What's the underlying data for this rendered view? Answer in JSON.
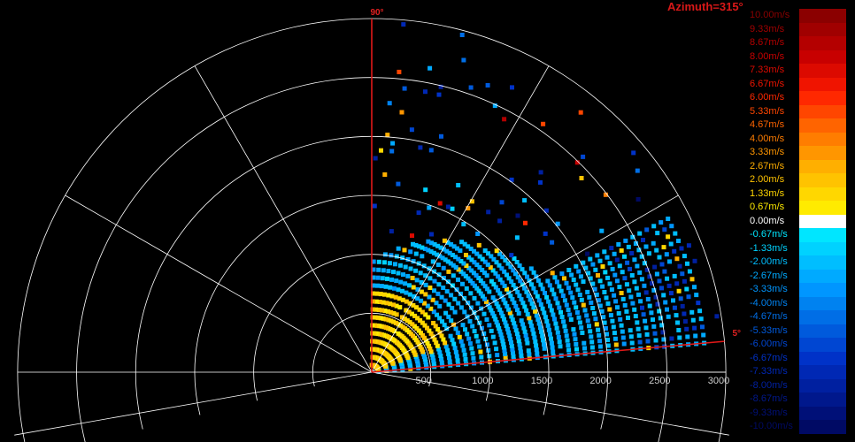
{
  "title": "Azimuth=315°",
  "chart_data": {
    "type": "heatmap",
    "plot": "polar sector (RHI scan)",
    "angle_labels": [
      "90°",
      "5°"
    ],
    "elevation_range_deg": [
      5,
      90
    ],
    "range_ticks": [
      "500",
      "1000",
      "1500",
      "2000",
      "2500",
      "3000"
    ],
    "range_max": 3000,
    "grid": true,
    "colorbar": {
      "unit": "m/s",
      "labels": [
        "10.00m/s",
        "9.33m/s",
        "8.67m/s",
        "8.00m/s",
        "7.33m/s",
        "6.67m/s",
        "6.00m/s",
        "5.33m/s",
        "4.67m/s",
        "4.00m/s",
        "3.33m/s",
        "2.67m/s",
        "2.00m/s",
        "1.33m/s",
        "0.67m/s",
        "0.00m/s",
        "-0.67m/s",
        "-1.33m/s",
        "-2.00m/s",
        "-2.67m/s",
        "-3.33m/s",
        "-4.00m/s",
        "-4.67m/s",
        "-5.33m/s",
        "-6.00m/s",
        "-6.67m/s",
        "-7.33m/s",
        "-8.00m/s",
        "-8.67m/s",
        "-9.33m/s",
        "-10.00m/s"
      ],
      "colors": [
        "#8b0000",
        "#a00000",
        "#b40000",
        "#c80000",
        "#dc0a00",
        "#f01400",
        "#ff2800",
        "#ff4600",
        "#ff6400",
        "#ff7d00",
        "#ff9600",
        "#ffaf00",
        "#ffc300",
        "#ffd700",
        "#ffeb00",
        "#ffffff",
        "#00e6ff",
        "#00d2ff",
        "#00beff",
        "#00aaff",
        "#0096ff",
        "#0082f0",
        "#006ee6",
        "#005adc",
        "#0046d2",
        "#0032c8",
        "#0028b4",
        "#0020a0",
        "#00188c",
        "#001078",
        "#000a64"
      ]
    }
  }
}
